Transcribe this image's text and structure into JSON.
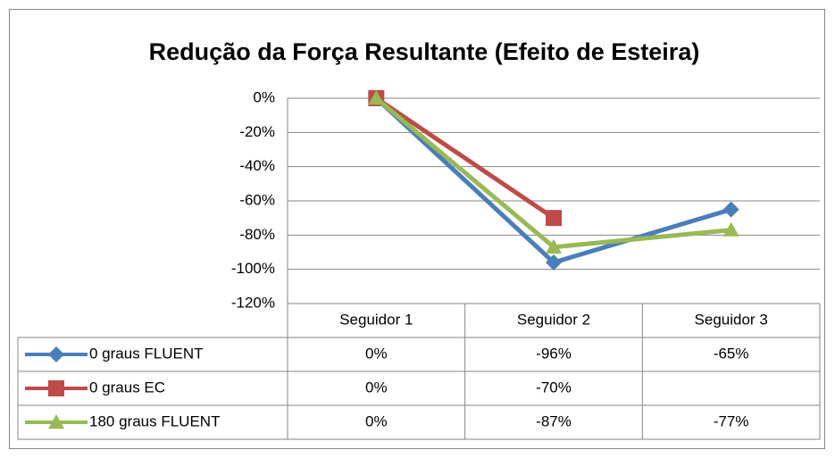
{
  "chart_data": {
    "type": "line",
    "title": "Redução da Força Resultante (Efeito de Esteira)",
    "categories": [
      "Seguidor 1",
      "Seguidor 2",
      "Seguidor 3"
    ],
    "series": [
      {
        "name": "0 graus FLUENT",
        "color": "#4a7ebb",
        "marker": "diamond",
        "values": [
          0,
          -96,
          -65
        ],
        "value_labels": [
          "0%",
          "-96%",
          "-65%"
        ]
      },
      {
        "name": "0 graus EC",
        "color": "#be4b48",
        "marker": "square",
        "values": [
          0,
          -70,
          null
        ],
        "value_labels": [
          "0%",
          "-70%",
          null
        ]
      },
      {
        "name": "180 graus FLUENT",
        "color": "#98b954",
        "marker": "triangle",
        "values": [
          0,
          -87,
          -77
        ],
        "value_labels": [
          "0%",
          "-87%",
          "-77%"
        ]
      }
    ],
    "ylim": [
      -120,
      0
    ],
    "yticks": [
      {
        "value": 0,
        "label": "0%"
      },
      {
        "value": -20,
        "label": "-20%"
      },
      {
        "value": -40,
        "label": "-40%"
      },
      {
        "value": -60,
        "label": "-60%"
      },
      {
        "value": -80,
        "label": "-80%"
      },
      {
        "value": -100,
        "label": "-100%"
      },
      {
        "value": -120,
        "label": "-120%"
      }
    ],
    "grid": true
  }
}
